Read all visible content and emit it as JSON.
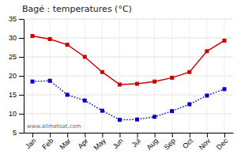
{
  "chart_data": {
    "type": "line",
    "title": "Bagé : temperatures (°C)",
    "categories": [
      "Jan",
      "Feb",
      "Mar",
      "Apr",
      "May",
      "Jun",
      "Jul",
      "Aug",
      "Sep",
      "Oct",
      "Nov",
      "Dec"
    ],
    "series": [
      {
        "color": "#cc0000",
        "marker": "square",
        "line_style": "solid",
        "values": [
          30.5,
          29.7,
          28.2,
          25.0,
          21.0,
          17.7,
          17.9,
          18.5,
          19.5,
          21.0,
          26.5,
          29.3
        ]
      },
      {
        "color": "#0000cc",
        "marker": "square",
        "line_style": "dotted",
        "values": [
          18.5,
          18.7,
          15.0,
          13.5,
          10.8,
          8.4,
          8.5,
          9.2,
          10.7,
          12.5,
          14.8,
          16.5
        ]
      }
    ],
    "ylim": [
      5,
      35
    ],
    "yticks": [
      5,
      10,
      15,
      20,
      25,
      30,
      35
    ],
    "grid": true,
    "annotations": [
      "www.allmetsat.com"
    ]
  }
}
